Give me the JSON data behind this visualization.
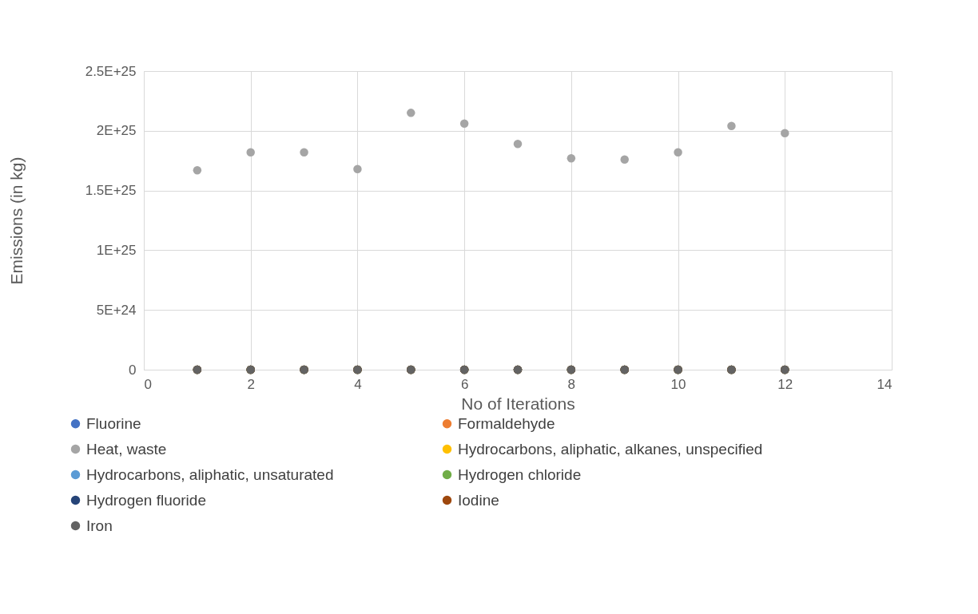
{
  "chart_data": {
    "type": "scatter",
    "xlabel": "No of Iterations",
    "ylabel": "Emissions (in kg)",
    "x": [
      1,
      2,
      3,
      4,
      5,
      6,
      7,
      8,
      9,
      10,
      11,
      12
    ],
    "xlim": [
      0,
      14
    ],
    "xticks": [
      0,
      2,
      4,
      6,
      8,
      10,
      12,
      14
    ],
    "ylim": [
      0,
      2.5e+25
    ],
    "yticks": [
      {
        "value": 0,
        "label": "0"
      },
      {
        "value": 5e+24,
        "label": "5E+24"
      },
      {
        "value": 1e+25,
        "label": "1E+25"
      },
      {
        "value": 1.5e+25,
        "label": "1.5E+25"
      },
      {
        "value": 2e+25,
        "label": "2E+25"
      },
      {
        "value": 2.5e+25,
        "label": "2.5E+25"
      }
    ],
    "grid": true,
    "legend": "bottom",
    "marker": "circle",
    "series": [
      {
        "name": "Fluorine",
        "color": "#4472c4",
        "values": [
          0,
          0,
          0,
          0,
          0,
          0,
          0,
          0,
          0,
          0,
          0,
          0
        ]
      },
      {
        "name": "Formaldehyde",
        "color": "#ed7d31",
        "values": [
          0,
          0,
          0,
          0,
          0,
          0,
          0,
          0,
          0,
          0,
          0,
          0
        ]
      },
      {
        "name": "Heat, waste",
        "color": "#a5a5a5",
        "values": [
          1.67e+25,
          1.82e+25,
          1.82e+25,
          1.68e+25,
          2.15e+25,
          2.06e+25,
          1.89e+25,
          1.77e+25,
          1.76e+25,
          1.82e+25,
          2.04e+25,
          1.98e+25
        ]
      },
      {
        "name": "Hydrocarbons, aliphatic, alkanes, unspecified",
        "color": "#ffc000",
        "values": [
          0,
          0,
          0,
          0,
          0,
          0,
          0,
          0,
          0,
          0,
          0,
          0
        ]
      },
      {
        "name": "Hydrocarbons, aliphatic, unsaturated",
        "color": "#5b9bd5",
        "values": [
          0,
          0,
          0,
          0,
          0,
          0,
          0,
          0,
          0,
          0,
          0,
          0
        ]
      },
      {
        "name": "Hydrogen chloride",
        "color": "#70ad47",
        "values": [
          0,
          0,
          0,
          0,
          0,
          0,
          0,
          0,
          0,
          0,
          0,
          0
        ]
      },
      {
        "name": "Hydrogen fluoride",
        "color": "#264478",
        "values": [
          0,
          0,
          0,
          0,
          0,
          0,
          0,
          0,
          0,
          0,
          0,
          0
        ]
      },
      {
        "name": "Iodine",
        "color": "#9e480e",
        "values": [
          0,
          0,
          0,
          0,
          0,
          0,
          0,
          0,
          0,
          0,
          0,
          0
        ]
      },
      {
        "name": "Iron",
        "color": "#636363",
        "values": [
          0,
          0,
          0,
          0,
          0,
          0,
          0,
          0,
          0,
          0,
          0,
          0
        ]
      }
    ]
  }
}
